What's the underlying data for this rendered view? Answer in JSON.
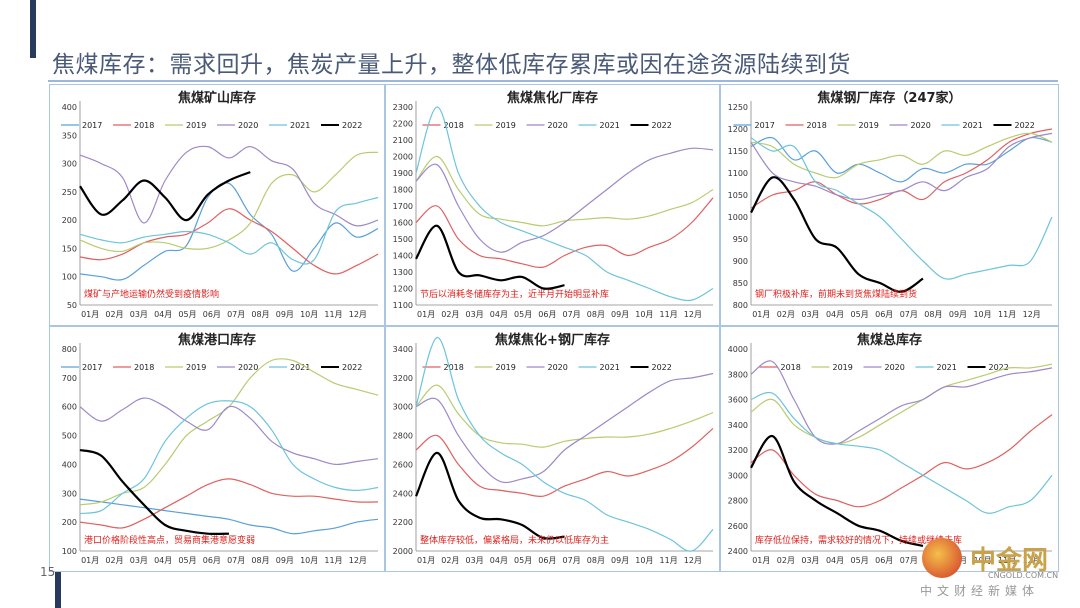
{
  "page": {
    "title": "焦煤库存：需求回升，焦炭产量上升，整体低库存累库或因在途资源陆续到货",
    "page_number": "15"
  },
  "watermark": {
    "brand": "中金网",
    "url": "CNGOLD.COM.CN",
    "slogan": "中文财经新媒体"
  },
  "colors": {
    "2017": "#5aa0d8",
    "2018": "#e06060",
    "2019": "#b8cc70",
    "2020": "#9e88c8",
    "2021": "#6cc4dc",
    "2022": "#000000",
    "annotation": "#e0201c"
  },
  "chart_data": [
    {
      "type": "line",
      "title": "焦煤矿山库存",
      "annotation": "煤矿与产地运输仍然受到疫情影响",
      "x_ticks": [
        "01月",
        "02月",
        "03月",
        "04月",
        "05月",
        "06月",
        "07月",
        "08月",
        "09月",
        "10月",
        "11月",
        "12月"
      ],
      "ylim": [
        50,
        400
      ],
      "y_ticks": [
        50,
        100,
        150,
        200,
        250,
        300,
        350,
        400
      ],
      "series": [
        {
          "name": "2017",
          "values": [
            105,
            100,
            95,
            120,
            145,
            155,
            240,
            265,
            210,
            175,
            110,
            150,
            195,
            170,
            185
          ]
        },
        {
          "name": "2018",
          "values": [
            135,
            130,
            140,
            160,
            170,
            175,
            195,
            220,
            200,
            180,
            150,
            120,
            105,
            120,
            140
          ]
        },
        {
          "name": "2019",
          "values": [
            165,
            150,
            145,
            160,
            160,
            150,
            150,
            165,
            195,
            265,
            280,
            250,
            280,
            315,
            320
          ]
        },
        {
          "name": "2020",
          "values": [
            315,
            300,
            275,
            195,
            270,
            320,
            330,
            310,
            330,
            305,
            290,
            230,
            210,
            190,
            200
          ]
        },
        {
          "name": "2021",
          "values": [
            175,
            165,
            160,
            170,
            175,
            180,
            175,
            160,
            140,
            160,
            130,
            130,
            215,
            230,
            240
          ]
        },
        {
          "name": "2022",
          "values": [
            260,
            210,
            235,
            270,
            240,
            200,
            245,
            270,
            285
          ]
        }
      ]
    },
    {
      "type": "line",
      "title": "焦煤焦化厂库存",
      "annotation": "节后以消耗冬储库存为主，近半月开始明显补库",
      "x_ticks": [
        "01月",
        "02月",
        "03月",
        "04月",
        "05月",
        "06月",
        "07月",
        "08月",
        "09月",
        "10月",
        "11月",
        "12月"
      ],
      "ylim": [
        1100,
        2300
      ],
      "y_ticks": [
        1100,
        1200,
        1300,
        1400,
        1500,
        1600,
        1700,
        1800,
        1900,
        2000,
        2100,
        2200,
        2300
      ],
      "series": [
        {
          "name": "2018",
          "values": [
            1600,
            1700,
            1500,
            1400,
            1380,
            1350,
            1330,
            1400,
            1450,
            1460,
            1400,
            1450,
            1500,
            1600,
            1750
          ]
        },
        {
          "name": "2019",
          "values": [
            1850,
            2000,
            1800,
            1650,
            1620,
            1600,
            1580,
            1610,
            1620,
            1630,
            1620,
            1640,
            1680,
            1720,
            1800
          ]
        },
        {
          "name": "2020",
          "values": [
            1850,
            1950,
            1700,
            1500,
            1420,
            1480,
            1520,
            1600,
            1700,
            1800,
            1900,
            1980,
            2020,
            2050,
            2040
          ]
        },
        {
          "name": "2021",
          "values": [
            1900,
            2300,
            1900,
            1700,
            1600,
            1550,
            1500,
            1450,
            1400,
            1300,
            1250,
            1200,
            1150,
            1130,
            1200
          ]
        },
        {
          "name": "2022",
          "values": [
            1380,
            1580,
            1300,
            1280,
            1250,
            1270,
            1200,
            1220
          ]
        }
      ]
    },
    {
      "type": "line",
      "title": "焦煤钢厂库存（247家）",
      "annotation": "钢厂积极补库，前期未到货焦煤陆续到货",
      "x_ticks": [
        "01月",
        "02月",
        "03月",
        "04月",
        "05月",
        "06月",
        "07月",
        "08月",
        "09月",
        "10月",
        "11月",
        "12月"
      ],
      "ylim": [
        800,
        1250
      ],
      "y_ticks": [
        800,
        850,
        900,
        950,
        1000,
        1050,
        1100,
        1150,
        1200,
        1250
      ],
      "series": [
        {
          "name": "2017",
          "values": [
            1160,
            1180,
            1130,
            1150,
            1100,
            1120,
            1100,
            1080,
            1110,
            1100,
            1120,
            1120,
            1150,
            1180,
            1170
          ]
        },
        {
          "name": "2018",
          "values": [
            1020,
            1050,
            1060,
            1080,
            1050,
            1030,
            1040,
            1060,
            1040,
            1080,
            1100,
            1130,
            1170,
            1190,
            1200
          ]
        },
        {
          "name": "2019",
          "values": [
            1170,
            1160,
            1120,
            1100,
            1090,
            1120,
            1130,
            1140,
            1120,
            1150,
            1140,
            1160,
            1180,
            1190,
            1170
          ]
        },
        {
          "name": "2020",
          "values": [
            1170,
            1100,
            1080,
            1070,
            1050,
            1040,
            1050,
            1060,
            1080,
            1060,
            1090,
            1110,
            1160,
            1180,
            1190
          ]
        },
        {
          "name": "2021",
          "values": [
            1180,
            1150,
            1160,
            1080,
            1060,
            1030,
            1000,
            950,
            900,
            860,
            870,
            880,
            890,
            900,
            1000
          ]
        },
        {
          "name": "2022",
          "values": [
            1010,
            1090,
            1040,
            950,
            930,
            870,
            850,
            830,
            860
          ]
        }
      ]
    },
    {
      "type": "line",
      "title": "焦煤港口库存",
      "annotation": "港口价格阶段性高点，贸易商集港意愿变弱",
      "x_ticks": [
        "01月",
        "02月",
        "03月",
        "04月",
        "05月",
        "06月",
        "07月",
        "08月",
        "09月",
        "10月",
        "11月",
        "12月"
      ],
      "ylim": [
        100,
        800
      ],
      "y_ticks": [
        100,
        200,
        300,
        400,
        500,
        600,
        700,
        800
      ],
      "series": [
        {
          "name": "2017",
          "values": [
            280,
            270,
            260,
            250,
            240,
            230,
            220,
            210,
            190,
            180,
            160,
            170,
            180,
            200,
            210
          ]
        },
        {
          "name": "2018",
          "values": [
            200,
            190,
            180,
            210,
            250,
            290,
            330,
            350,
            330,
            300,
            290,
            290,
            280,
            270,
            270
          ]
        },
        {
          "name": "2019",
          "values": [
            260,
            270,
            300,
            320,
            400,
            500,
            550,
            600,
            700,
            760,
            760,
            720,
            680,
            660,
            640
          ]
        },
        {
          "name": "2020",
          "values": [
            600,
            550,
            590,
            630,
            600,
            550,
            520,
            600,
            560,
            480,
            440,
            420,
            400,
            410,
            420
          ]
        },
        {
          "name": "2021",
          "values": [
            230,
            240,
            300,
            350,
            480,
            560,
            610,
            620,
            600,
            520,
            400,
            350,
            320,
            310,
            320
          ]
        },
        {
          "name": "2022",
          "values": [
            450,
            430,
            340,
            260,
            190,
            170,
            160,
            160
          ]
        }
      ]
    },
    {
      "type": "line",
      "title": "焦煤焦化+钢厂库存",
      "annotation": "整体库存较低，偏紧格局，未来仍以低库存为主",
      "x_ticks": [
        "01月",
        "02月",
        "03月",
        "04月",
        "05月",
        "06月",
        "07月",
        "08月",
        "09月",
        "10月",
        "11月",
        "12月"
      ],
      "ylim": [
        2000,
        3400
      ],
      "y_ticks": [
        2000,
        2200,
        2400,
        2600,
        2800,
        3000,
        3200,
        3400
      ],
      "series": [
        {
          "name": "2018",
          "values": [
            2700,
            2800,
            2600,
            2450,
            2420,
            2400,
            2380,
            2450,
            2500,
            2550,
            2520,
            2560,
            2620,
            2720,
            2850
          ]
        },
        {
          "name": "2019",
          "values": [
            3000,
            3150,
            2950,
            2800,
            2750,
            2740,
            2720,
            2760,
            2780,
            2790,
            2790,
            2810,
            2850,
            2900,
            2960
          ]
        },
        {
          "name": "2020",
          "values": [
            3000,
            3050,
            2800,
            2600,
            2480,
            2500,
            2550,
            2700,
            2800,
            2900,
            3000,
            3100,
            3180,
            3200,
            3230
          ]
        },
        {
          "name": "2021",
          "values": [
            3000,
            3480,
            3050,
            2800,
            2680,
            2600,
            2480,
            2400,
            2350,
            2250,
            2200,
            2150,
            2080,
            2000,
            2150
          ]
        },
        {
          "name": "2022",
          "values": [
            2380,
            2680,
            2350,
            2230,
            2220,
            2180,
            2090,
            2100
          ]
        }
      ]
    },
    {
      "type": "line",
      "title": "焦煤总库存",
      "annotation": "库存低位保持，需求较好的情况下，持续或继续去库",
      "x_ticks": [
        "01月",
        "02月",
        "03月",
        "04月",
        "05月",
        "06月",
        "07月",
        "08月",
        "09月",
        "10月",
        "11月",
        "12月"
      ],
      "ylim": [
        2400,
        4000
      ],
      "y_ticks": [
        2400,
        2600,
        2800,
        3000,
        3200,
        3400,
        3600,
        3800,
        4000
      ],
      "series": [
        {
          "name": "2018",
          "values": [
            3100,
            3200,
            3000,
            2850,
            2800,
            2750,
            2800,
            2900,
            3000,
            3100,
            3050,
            3100,
            3200,
            3350,
            3480
          ]
        },
        {
          "name": "2019",
          "values": [
            3500,
            3600,
            3400,
            3300,
            3250,
            3300,
            3400,
            3500,
            3600,
            3700,
            3750,
            3800,
            3850,
            3850,
            3880
          ]
        },
        {
          "name": "2020",
          "values": [
            3800,
            3900,
            3600,
            3300,
            3250,
            3350,
            3450,
            3550,
            3600,
            3700,
            3700,
            3750,
            3800,
            3820,
            3850
          ]
        },
        {
          "name": "2021",
          "values": [
            3600,
            3650,
            3450,
            3300,
            3250,
            3230,
            3200,
            3100,
            3000,
            2900,
            2800,
            2700,
            2750,
            2800,
            3000
          ]
        },
        {
          "name": "2022",
          "values": [
            3060,
            3310,
            2950,
            2800,
            2700,
            2600,
            2560,
            2480,
            2440
          ]
        }
      ]
    }
  ]
}
